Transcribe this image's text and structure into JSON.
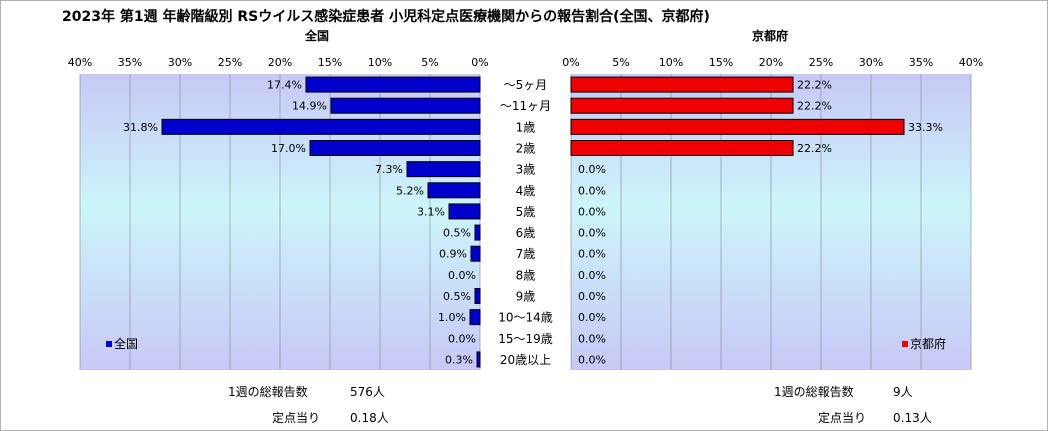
{
  "title": "2023年 第1週 年齢階級別 RSウイルス感染症患者 小児科定点医療機関からの報告割合(全国、京都府)",
  "left_panel": {
    "name": "全国",
    "legend": "全国",
    "color": "#0000cc"
  },
  "right_panel": {
    "name": "京都府",
    "legend": "京都府",
    "color": "#ee0000"
  },
  "footer": {
    "national": {
      "weekly_label": "1週の総報告数",
      "weekly_value": "576人",
      "per_label": "定点当り",
      "per_value": "0.18人"
    },
    "kyoto": {
      "weekly_label": "1週の総報告数",
      "weekly_value": "9人",
      "per_label": "定点当り",
      "per_value": "0.13人"
    }
  },
  "chart_data": {
    "type": "bar",
    "orientation": "horizontal",
    "layout": "mirrored",
    "categories": [
      "～5ヶ月",
      "～11ヶ月",
      "1歳",
      "2歳",
      "3歳",
      "4歳",
      "5歳",
      "6歳",
      "7歳",
      "8歳",
      "9歳",
      "10～14歳",
      "15～19歳",
      "20歳以上"
    ],
    "series": [
      {
        "name": "全国",
        "color": "#0000cc",
        "values": [
          17.4,
          14.9,
          31.8,
          17.0,
          7.3,
          5.2,
          3.1,
          0.5,
          0.9,
          0.0,
          0.5,
          1.0,
          0.0,
          0.3
        ],
        "labels": [
          "17.4%",
          "14.9%",
          "31.8%",
          "17.0%",
          "7.3%",
          "5.2%",
          "3.1%",
          "0.5%",
          "0.9%",
          "0.0%",
          "0.5%",
          "1.0%",
          "0.0%",
          "0.3%"
        ]
      },
      {
        "name": "京都府",
        "color": "#ee0000",
        "values": [
          22.2,
          22.2,
          33.3,
          22.2,
          0.0,
          0.0,
          0.0,
          0.0,
          0.0,
          0.0,
          0.0,
          0.0,
          0.0,
          0.0
        ],
        "labels": [
          "22.2%",
          "22.2%",
          "33.3%",
          "22.2%",
          "0.0%",
          "0.0%",
          "0.0%",
          "0.0%",
          "0.0%",
          "0.0%",
          "0.0%",
          "0.0%",
          "0.0%",
          "0.0%"
        ]
      }
    ],
    "xlim": [
      0,
      40
    ],
    "ticks": [
      0,
      5,
      10,
      15,
      20,
      25,
      30,
      35,
      40
    ],
    "tick_labels": [
      "0%",
      "5%",
      "10%",
      "15%",
      "20%",
      "25%",
      "30%",
      "35%",
      "40%"
    ],
    "grid": true,
    "legend_placement": "bottom-inside",
    "background": "gradient lavender-cyan-lavender"
  }
}
